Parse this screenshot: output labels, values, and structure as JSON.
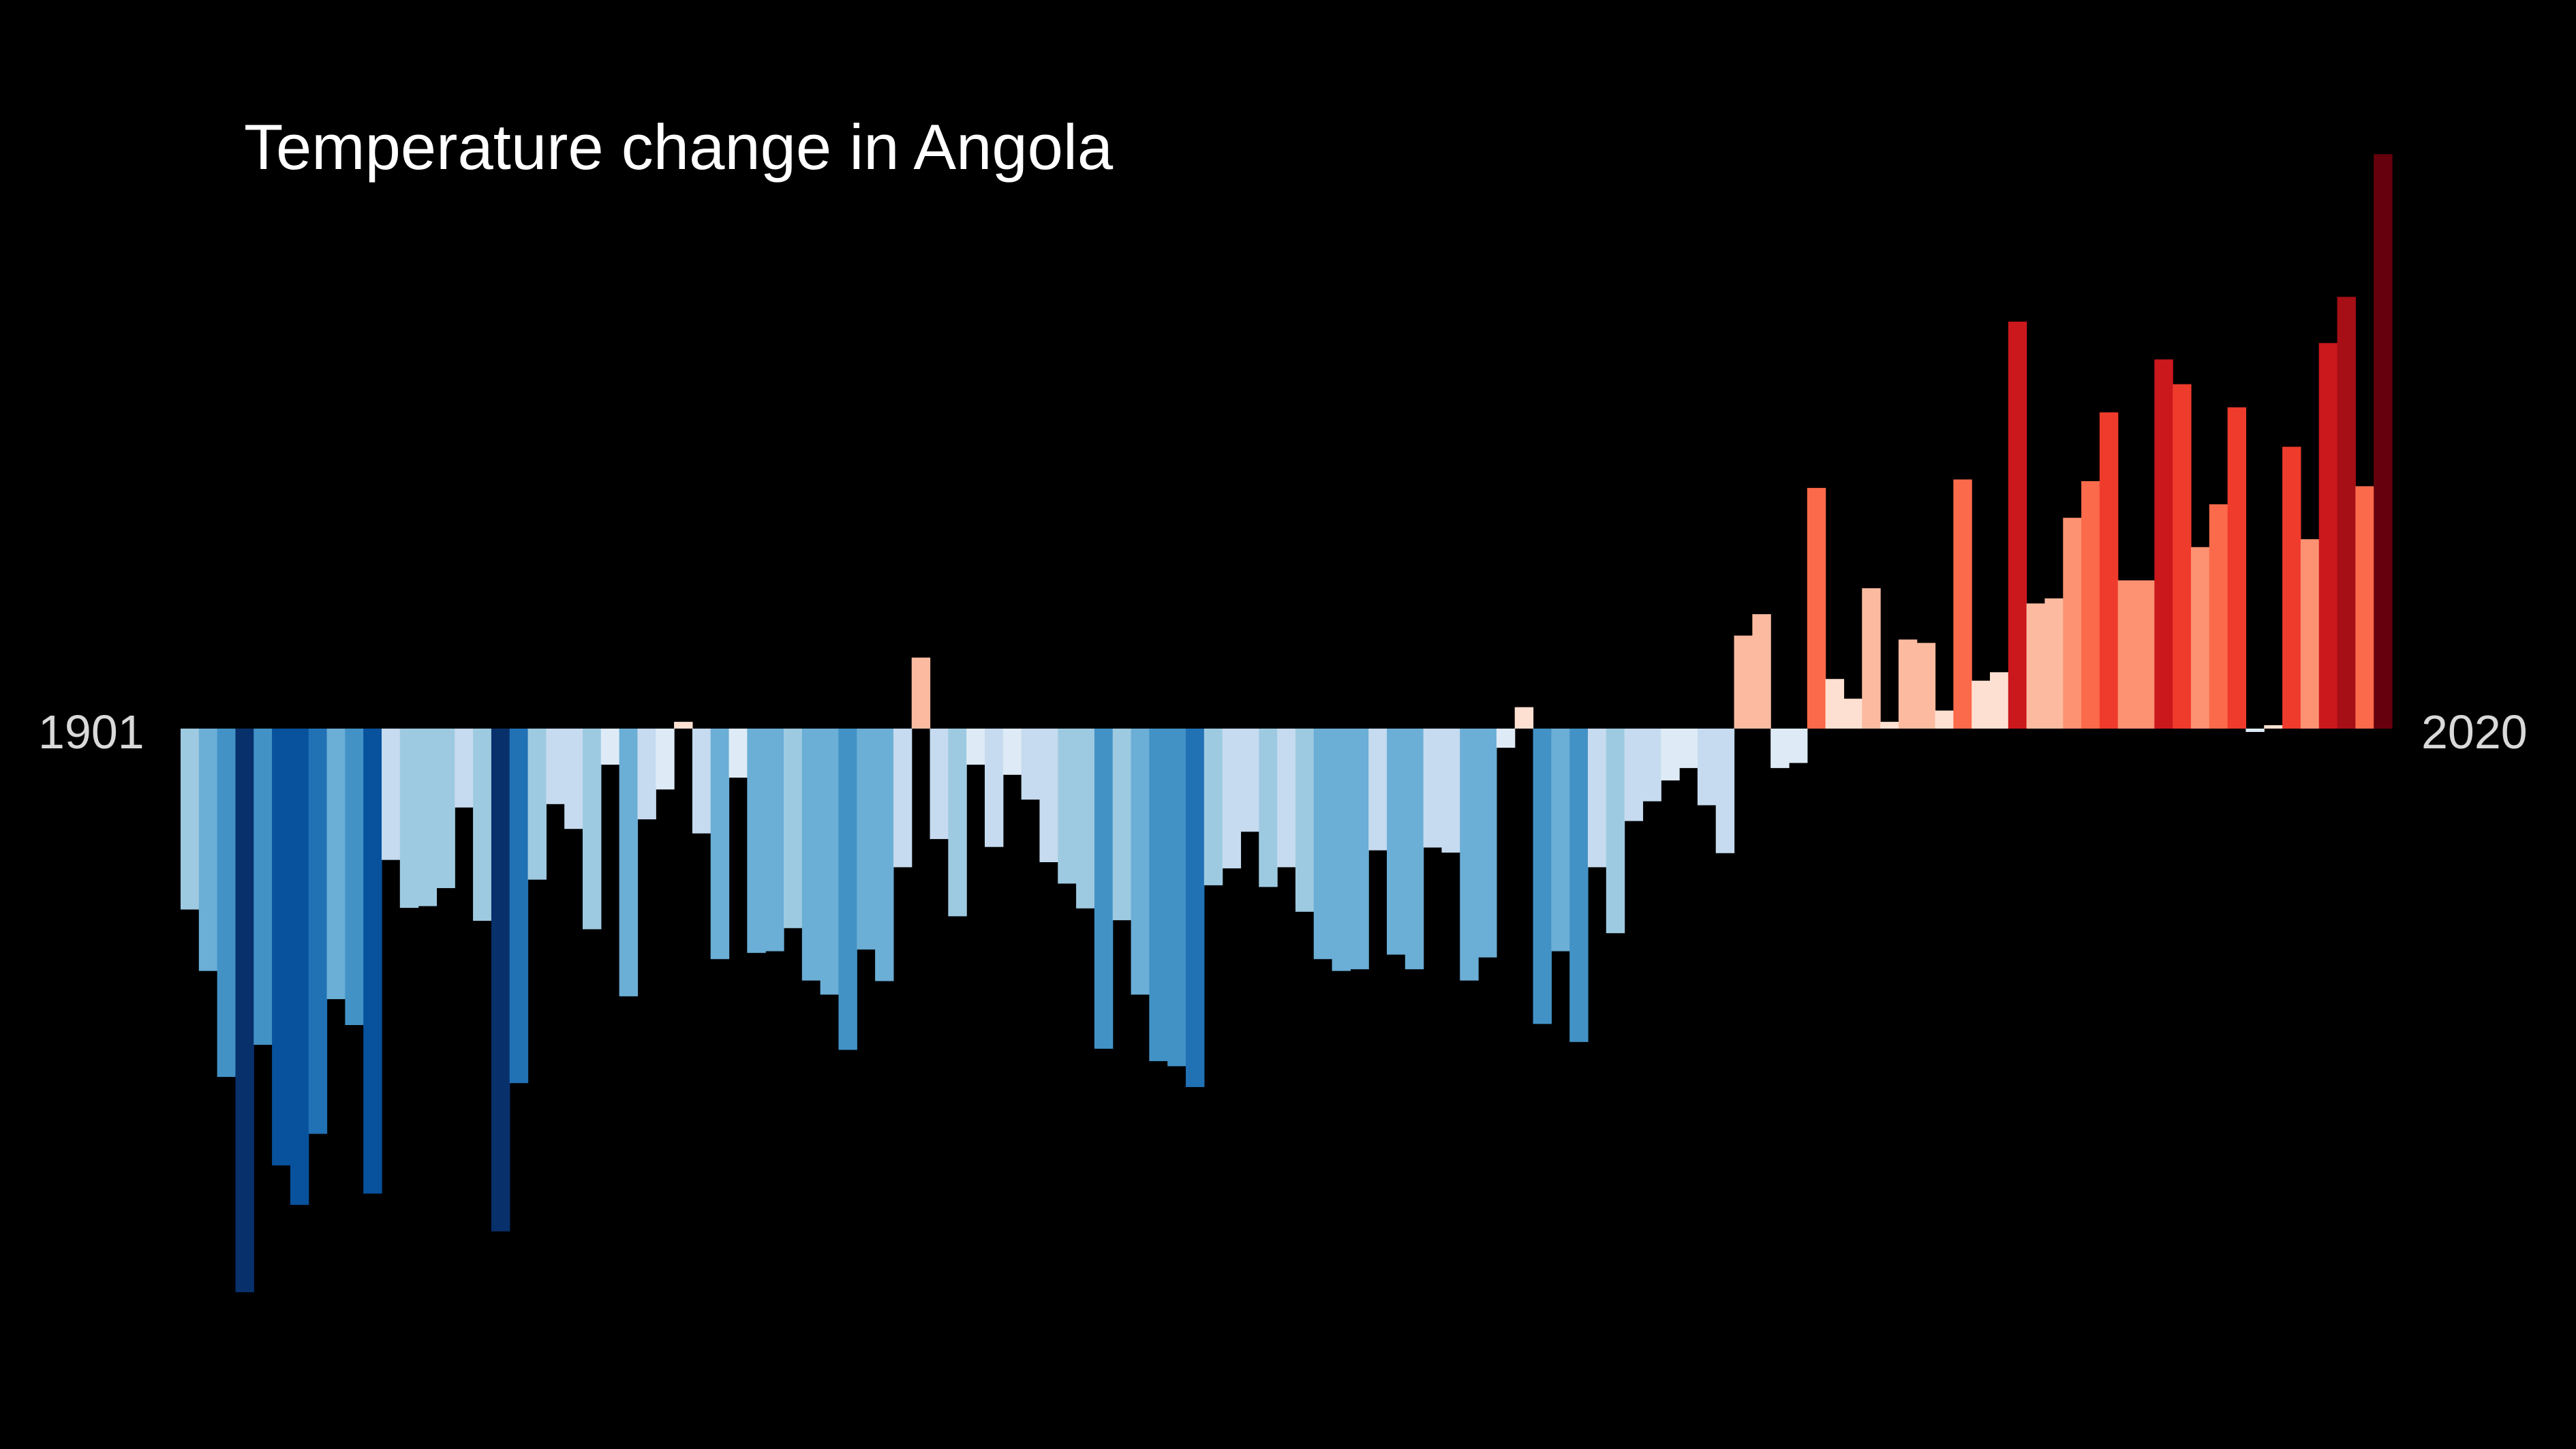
{
  "chart_data": {
    "type": "bar",
    "title": "Temperature change in Angola",
    "xlabel": "",
    "ylabel": "",
    "start_label": "1901",
    "end_label": "2020",
    "categories": [
      1901,
      1902,
      1903,
      1904,
      1905,
      1906,
      1907,
      1908,
      1909,
      1910,
      1911,
      1912,
      1913,
      1914,
      1915,
      1916,
      1917,
      1918,
      1919,
      1920,
      1921,
      1922,
      1923,
      1924,
      1925,
      1926,
      1927,
      1928,
      1929,
      1930,
      1931,
      1932,
      1933,
      1934,
      1935,
      1936,
      1937,
      1938,
      1939,
      1940,
      1941,
      1942,
      1943,
      1944,
      1945,
      1946,
      1947,
      1948,
      1949,
      1950,
      1951,
      1952,
      1953,
      1954,
      1955,
      1956,
      1957,
      1958,
      1959,
      1960,
      1961,
      1962,
      1963,
      1964,
      1965,
      1966,
      1967,
      1968,
      1969,
      1970,
      1971,
      1972,
      1973,
      1974,
      1975,
      1976,
      1977,
      1978,
      1979,
      1980,
      1981,
      1982,
      1983,
      1984,
      1985,
      1986,
      1987,
      1988,
      1989,
      1990,
      1991,
      1992,
      1993,
      1994,
      1995,
      1996,
      1997,
      1998,
      1999,
      2000,
      2001,
      2002,
      2003,
      2004,
      2005,
      2006,
      2007,
      2008,
      2009,
      2010,
      2011,
      2012,
      2013,
      2014,
      2015,
      2016,
      2017,
      2018,
      2019,
      2020
    ],
    "values": [
      -0.321,
      -0.43,
      -0.618,
      -1.0,
      -0.561,
      -0.775,
      -0.845,
      -0.719,
      -0.48,
      -0.526,
      -0.825,
      -0.233,
      -0.318,
      -0.315,
      -0.283,
      -0.14,
      -0.341,
      -0.892,
      -0.629,
      -0.268,
      -0.134,
      -0.178,
      -0.356,
      -0.064,
      -0.475,
      -0.161,
      -0.108,
      0.012,
      -0.186,
      -0.409,
      -0.087,
      -0.398,
      -0.395,
      -0.354,
      -0.447,
      -0.472,
      -0.57,
      -0.392,
      -0.448,
      -0.246,
      0.126,
      -0.196,
      -0.333,
      -0.064,
      -0.21,
      -0.082,
      -0.126,
      -0.237,
      -0.275,
      -0.319,
      -0.568,
      -0.34,
      -0.472,
      -0.59,
      -0.599,
      -0.636,
      -0.278,
      -0.248,
      -0.183,
      -0.281,
      -0.246,
      -0.325,
      -0.409,
      -0.43,
      -0.427,
      -0.216,
      -0.401,
      -0.427,
      -0.211,
      -0.22,
      -0.447,
      -0.406,
      -0.034,
      0.038,
      -0.524,
      -0.395,
      -0.556,
      -0.246,
      -0.363,
      -0.164,
      -0.129,
      -0.092,
      -0.07,
      -0.136,
      -0.221,
      0.165,
      0.203,
      -0.07,
      -0.061,
      0.427,
      0.088,
      0.053,
      0.249,
      0.012,
      0.158,
      0.152,
      0.032,
      0.442,
      0.085,
      0.1,
      0.722,
      0.222,
      0.231,
      0.374,
      0.439,
      0.561,
      0.263,
      0.263,
      0.655,
      0.611,
      0.322,
      0.398,
      0.57,
      -0.006,
      0.006,
      0.5,
      0.336,
      0.684,
      0.766,
      0.43
    ],
    "extra_tail_value": 1.019,
    "color_scale": [
      "#08306b",
      "#08519c",
      "#2171b5",
      "#4292c6",
      "#6baed6",
      "#9ecae1",
      "#c6dbef",
      "#deebf7",
      "#fee0d2",
      "#fcbba1",
      "#fc9272",
      "#fb6a4a",
      "#ef3b2c",
      "#cb181d",
      "#a50f15",
      "#67000d"
    ],
    "background": "#000000"
  }
}
